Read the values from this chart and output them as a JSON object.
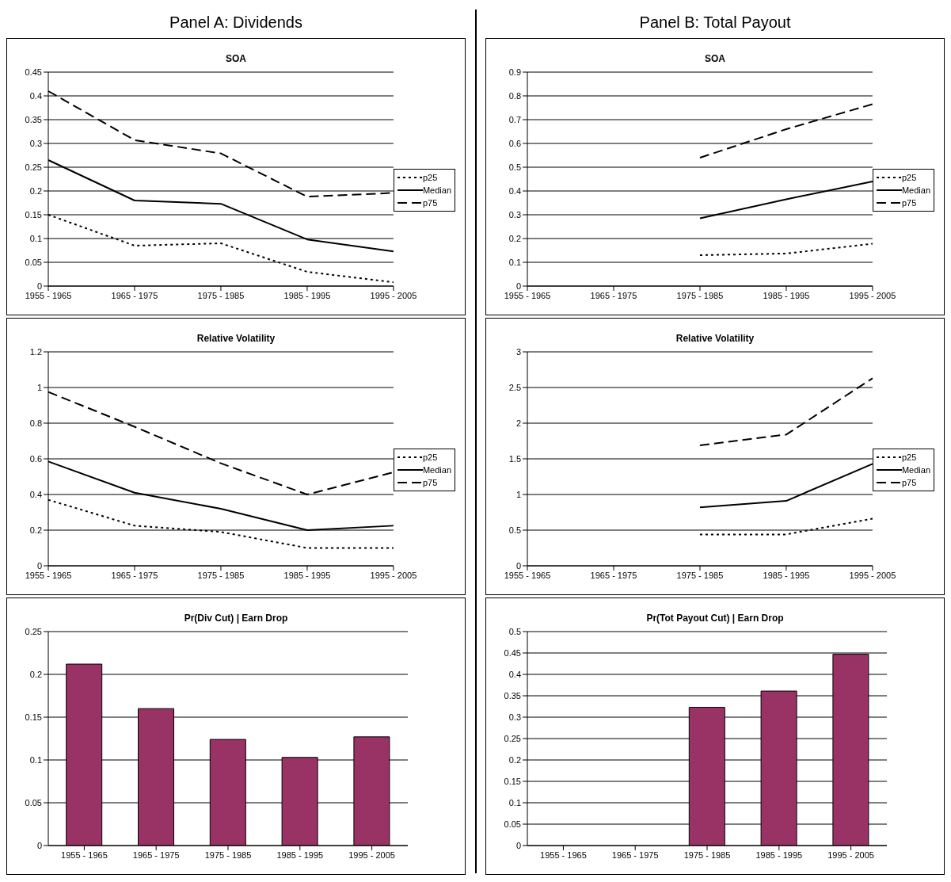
{
  "chart_data": [
    {
      "type": "line",
      "title": "SOA",
      "annotations": [
        "Panel A: Dividends"
      ],
      "categories": [
        "1955 - 1965",
        "1965 - 1975",
        "1975 - 1985",
        "1985 - 1995",
        "1995 - 2005"
      ],
      "ylim": [
        0,
        0.45
      ],
      "yticks": [
        0,
        0.05,
        0.1,
        0.15,
        0.2,
        0.25,
        0.3,
        0.35,
        0.4,
        0.45
      ],
      "grid": "y",
      "legend": "right",
      "series": [
        {
          "name": "p25",
          "color": "#000000",
          "line_style": "dotted",
          "values": [
            0.15,
            0.085,
            0.09,
            0.03,
            0.008
          ]
        },
        {
          "name": "Median",
          "color": "#000000",
          "line_style": "solid",
          "values": [
            0.265,
            0.18,
            0.173,
            0.098,
            0.073
          ]
        },
        {
          "name": "p75",
          "color": "#000000",
          "line_style": "dashed",
          "values": [
            0.41,
            0.307,
            0.279,
            0.188,
            0.196
          ]
        }
      ]
    },
    {
      "type": "line",
      "title": "SOA",
      "annotations": [
        "Panel B: Total Payout"
      ],
      "categories": [
        "1955 - 1965",
        "1965 - 1975",
        "1975 - 1985",
        "1985 - 1995",
        "1995 - 2005"
      ],
      "ylim": [
        0,
        0.9
      ],
      "yticks": [
        0,
        0.1,
        0.2,
        0.3,
        0.4,
        0.5,
        0.6,
        0.7,
        0.8,
        0.9
      ],
      "grid": "y",
      "legend": "right",
      "series": [
        {
          "name": "p25",
          "color": "#000000",
          "line_style": "dotted",
          "values": [
            null,
            null,
            0.13,
            0.137,
            0.178
          ]
        },
        {
          "name": "Median",
          "color": "#000000",
          "line_style": "solid",
          "values": [
            null,
            null,
            0.285,
            0.365,
            0.44
          ]
        },
        {
          "name": "p75",
          "color": "#000000",
          "line_style": "dashed",
          "values": [
            null,
            null,
            0.54,
            0.66,
            0.765
          ]
        }
      ]
    },
    {
      "type": "line",
      "title": "Relative Volatility",
      "categories": [
        "1955 - 1965",
        "1965 - 1975",
        "1975 - 1985",
        "1985 - 1995",
        "1995 - 2005"
      ],
      "ylim": [
        0,
        1.2
      ],
      "yticks": [
        0,
        0.2,
        0.4,
        0.6,
        0.8,
        1,
        1.2
      ],
      "grid": "y",
      "legend": "right",
      "series": [
        {
          "name": "p25",
          "color": "#000000",
          "line_style": "dotted",
          "values": [
            0.37,
            0.225,
            0.19,
            0.1,
            0.1
          ]
        },
        {
          "name": "Median",
          "color": "#000000",
          "line_style": "solid",
          "values": [
            0.585,
            0.41,
            0.32,
            0.2,
            0.225
          ]
        },
        {
          "name": "p75",
          "color": "#000000",
          "line_style": "dashed",
          "values": [
            0.975,
            0.78,
            0.575,
            0.4,
            0.525
          ]
        }
      ]
    },
    {
      "type": "line",
      "title": "Relative Volatility",
      "categories": [
        "1955 - 1965",
        "1965 - 1975",
        "1975 - 1985",
        "1985 - 1995",
        "1995 - 2005"
      ],
      "ylim": [
        0,
        3
      ],
      "yticks": [
        0,
        0.5,
        1,
        1.5,
        2,
        2.5,
        3
      ],
      "grid": "y",
      "legend": "right",
      "series": [
        {
          "name": "p25",
          "color": "#000000",
          "line_style": "dotted",
          "values": [
            null,
            null,
            0.44,
            0.44,
            0.66
          ]
        },
        {
          "name": "Median",
          "color": "#000000",
          "line_style": "solid",
          "values": [
            null,
            null,
            0.82,
            0.91,
            1.43
          ]
        },
        {
          "name": "p75",
          "color": "#000000",
          "line_style": "dashed",
          "values": [
            null,
            null,
            1.69,
            1.84,
            2.63
          ]
        }
      ]
    },
    {
      "type": "bar",
      "title": "Pr(Div Cut) | Earn Drop",
      "categories": [
        "1955 - 1965",
        "1965 - 1975",
        "1975 - 1985",
        "1985 - 1995",
        "1995 - 2005"
      ],
      "ylim": [
        0,
        0.25
      ],
      "yticks": [
        0,
        0.05,
        0.1,
        0.15,
        0.2,
        0.25
      ],
      "grid": "y",
      "series": [
        {
          "color": "#993366",
          "values": [
            0.212,
            0.16,
            0.124,
            0.103,
            0.127
          ]
        }
      ]
    },
    {
      "type": "bar",
      "title": "Pr(Tot Payout Cut) | Earn Drop",
      "categories": [
        "1955 - 1965",
        "1965 - 1975",
        "1975 - 1985",
        "1985 - 1995",
        "1995 - 2005"
      ],
      "ylim": [
        0,
        0.5
      ],
      "yticks": [
        0,
        0.05,
        0.1,
        0.15,
        0.2,
        0.25,
        0.3,
        0.35,
        0.4,
        0.45,
        0.5
      ],
      "grid": "y",
      "series": [
        {
          "color": "#993366",
          "values": [
            null,
            null,
            0.323,
            0.361,
            0.447
          ]
        }
      ]
    }
  ]
}
